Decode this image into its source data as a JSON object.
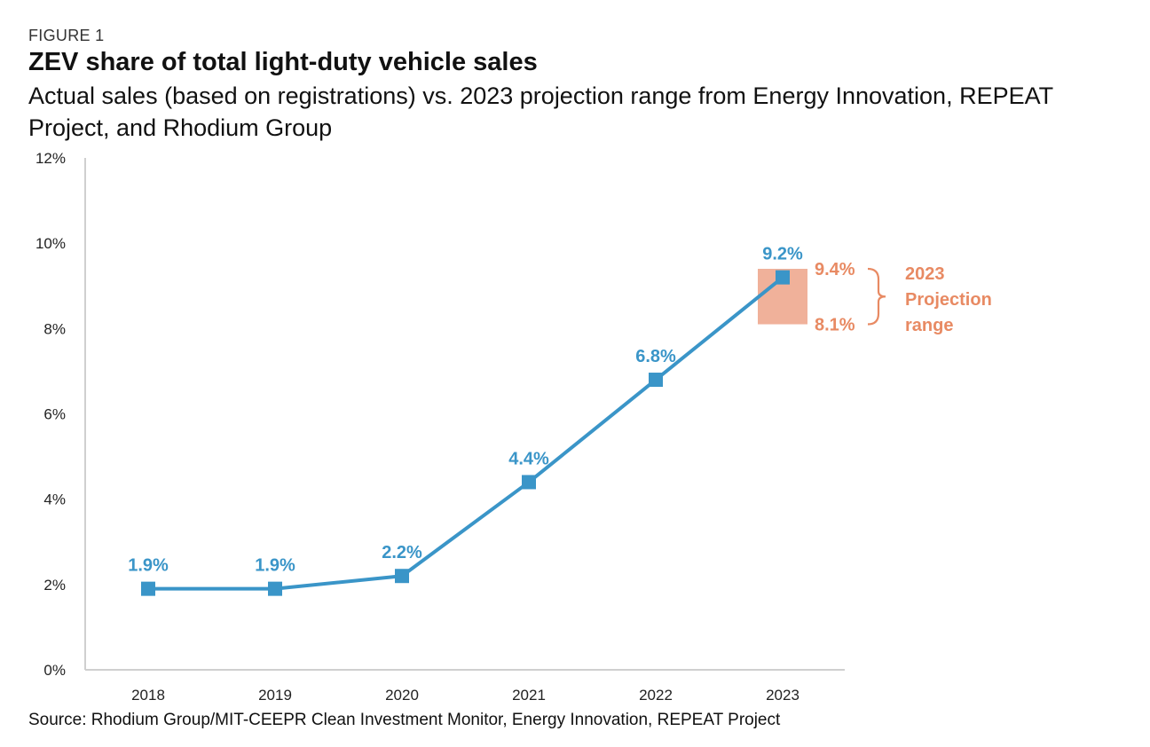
{
  "header": {
    "figure_label": "FIGURE 1",
    "title": "ZEV share of total light-duty vehicle sales",
    "subtitle": "Actual sales (based on registrations) vs. 2023 projection range from Energy Innovation, REPEAT Project, and Rhodium Group"
  },
  "source": "Source: Rhodium Group/MIT-CEEPR Clean Investment Monitor, Energy Innovation, REPEAT Project",
  "chart_data": {
    "type": "line",
    "title": "ZEV share of total light-duty vehicle sales",
    "subtitle": "Actual sales (based on registrations) vs. 2023 projection range from Energy Innovation, REPEAT Project, and Rhodium Group",
    "xlabel": "",
    "ylabel": "",
    "categories": [
      "2018",
      "2019",
      "2020",
      "2021",
      "2022",
      "2023"
    ],
    "series": [
      {
        "values": [
          1.9,
          1.9,
          2.2,
          4.4,
          6.8,
          9.2
        ],
        "data_labels": [
          "1.9%",
          "1.9%",
          "2.2%",
          "4.4%",
          "6.8%",
          "9.2%"
        ],
        "color": "#3a95c8"
      }
    ],
    "ylim": [
      0,
      12
    ],
    "yticks": [
      0,
      2,
      4,
      6,
      8,
      10,
      12
    ],
    "ytick_labels": [
      "0%",
      "2%",
      "4%",
      "6%",
      "8%",
      "10%",
      "12%"
    ],
    "grid": false,
    "projection_range": {
      "category": "2023",
      "low": 8.1,
      "high": 9.4,
      "low_label": "8.1%",
      "high_label": "9.4%",
      "label_lines": [
        "2023",
        "Projection",
        "range"
      ],
      "color": "#e88a63",
      "fill_color": "#f0b19a"
    }
  }
}
